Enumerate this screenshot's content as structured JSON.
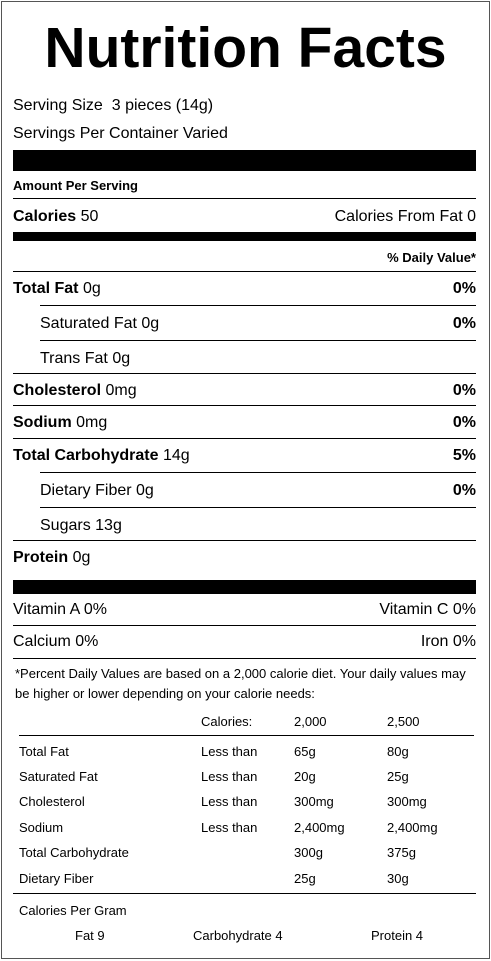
{
  "title": "Nutrition Facts",
  "serving": {
    "size_label": "Serving Size",
    "size_value": "3 pieces (14g)",
    "per_container_label": "Servings Per Container",
    "per_container_value": "Varied"
  },
  "amount_per_serving": "Amount Per Serving",
  "calories": {
    "label": "Calories",
    "value": "50",
    "from_fat_label": "Calories From Fat",
    "from_fat_value": "0"
  },
  "daily_value_header": "% Daily Value*",
  "nutrients": {
    "total_fat": {
      "label": "Total Fat",
      "amount": "0g",
      "dv": "0%"
    },
    "saturated_fat": {
      "label": "Saturated Fat",
      "amount": "0g",
      "dv": "0%"
    },
    "trans_fat": {
      "label": "Trans Fat",
      "amount": "0g"
    },
    "cholesterol": {
      "label": "Cholesterol",
      "amount": "0mg",
      "dv": "0%"
    },
    "sodium": {
      "label": "Sodium",
      "amount": "0mg",
      "dv": "0%"
    },
    "total_carb": {
      "label": "Total Carbohydrate",
      "amount": "14g",
      "dv": "5%"
    },
    "dietary_fiber": {
      "label": "Dietary Fiber",
      "amount": "0g",
      "dv": "0%"
    },
    "sugars": {
      "label": "Sugars",
      "amount": "13g"
    },
    "protein": {
      "label": "Protein",
      "amount": "0g"
    }
  },
  "vitamins": {
    "vitamin_a": "Vitamin A 0%",
    "vitamin_c": "Vitamin C 0%",
    "calcium": "Calcium 0%",
    "iron": "Iron 0%"
  },
  "footnote": "*Percent Daily Values are based on a 2,000 calorie diet. Your daily values may be higher or lower depending on your calorie needs:",
  "reference_table": {
    "header": {
      "calories_label": "Calories:",
      "col_2000": "2,000",
      "col_2500": "2,500"
    },
    "rows": [
      {
        "nutrient": "Total Fat",
        "qualifier": "Less than",
        "v2000": "65g",
        "v2500": "80g"
      },
      {
        "nutrient": "Saturated Fat",
        "qualifier": "Less than",
        "v2000": "20g",
        "v2500": "25g"
      },
      {
        "nutrient": "Cholesterol",
        "qualifier": "Less than",
        "v2000": "300mg",
        "v2500": "300mg"
      },
      {
        "nutrient": "Sodium",
        "qualifier": "Less than",
        "v2000": "2,400mg",
        "v2500": "2,400mg"
      },
      {
        "nutrient": "Total Carbohydrate",
        "qualifier": "",
        "v2000": "300g",
        "v2500": "375g"
      },
      {
        "nutrient": "Dietary Fiber",
        "qualifier": "",
        "v2000": "25g",
        "v2500": "30g"
      }
    ]
  },
  "calories_per_gram": {
    "label": "Calories Per Gram",
    "fat": "Fat 9",
    "carbohydrate": "Carbohydrate 4",
    "protein": "Protein 4"
  }
}
